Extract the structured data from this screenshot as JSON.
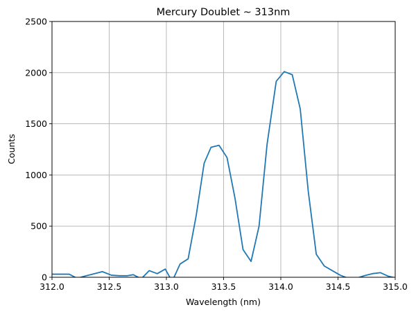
{
  "chart_data": {
    "type": "line",
    "title": "Mercury Doublet ~ 313nm",
    "xlabel": "Wavelength (nm)",
    "ylabel": "Counts",
    "xlim": [
      312.0,
      315.0
    ],
    "ylim": [
      0,
      2500
    ],
    "xticks": [
      312.0,
      312.5,
      313.0,
      313.5,
      314.0,
      314.5,
      315.0
    ],
    "xtick_labels": [
      "312.0",
      "312.5",
      "313.0",
      "313.5",
      "314.0",
      "314.5",
      "315.0"
    ],
    "yticks": [
      0,
      500,
      1000,
      1500,
      2000,
      2500
    ],
    "ytick_labels": [
      "0",
      "500",
      "1000",
      "1500",
      "2000",
      "2500"
    ],
    "grid": true,
    "series": [
      {
        "color": "#1f77b4",
        "x": [
          312.0,
          312.07,
          312.15,
          312.22,
          312.3,
          312.37,
          312.44,
          312.52,
          312.59,
          312.66,
          312.71,
          312.78,
          312.85,
          312.92,
          312.99,
          313.05,
          313.12,
          313.19,
          313.26,
          313.33,
          313.39,
          313.46,
          313.53,
          313.6,
          313.67,
          313.74,
          313.81,
          313.88,
          313.96,
          314.03,
          314.1,
          314.17,
          314.24,
          314.31,
          314.38,
          314.45,
          314.52,
          314.59,
          314.66,
          314.73,
          314.8,
          314.87,
          314.94,
          315.0
        ],
        "y": [
          30,
          30,
          30,
          -10,
          15,
          35,
          55,
          20,
          15,
          15,
          25,
          -15,
          65,
          35,
          80,
          -40,
          130,
          180,
          600,
          1115,
          1270,
          1290,
          1170,
          770,
          270,
          155,
          500,
          1300,
          1915,
          2010,
          1980,
          1645,
          840,
          225,
          110,
          65,
          20,
          -10,
          -10,
          15,
          35,
          45,
          10,
          -5
        ]
      }
    ]
  }
}
